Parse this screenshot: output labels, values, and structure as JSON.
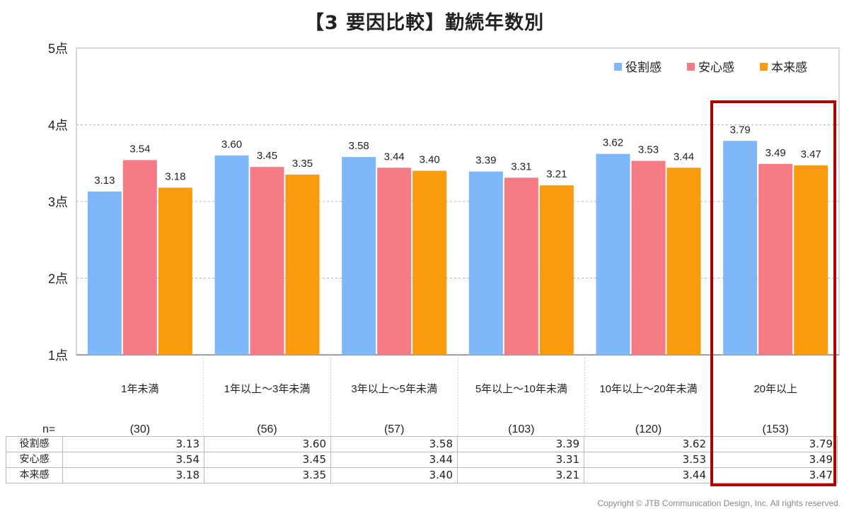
{
  "title": "【3 要因比較】勤続年数別",
  "copyright": "Copyright © JTB Communication Design, Inc. All rights reserved.",
  "n_label": "n=",
  "colors": {
    "役割感": "#7eb8f8",
    "安心感": "#f77b86",
    "本来感": "#f99b0c",
    "highlight": "#b00000"
  },
  "chart_data": {
    "type": "bar",
    "categories": [
      "1年未満",
      "1年以上～3年未満",
      "3年以上～5年未満",
      "5年以上～10年未満",
      "10年以上～20年未満",
      "20年以上"
    ],
    "sample_sizes": [
      "(30)",
      "(56)",
      "(57)",
      "(103)",
      "(120)",
      "(153)"
    ],
    "series": [
      {
        "name": "役割感",
        "values": [
          3.13,
          3.6,
          3.58,
          3.39,
          3.62,
          3.79
        ]
      },
      {
        "name": "安心感",
        "values": [
          3.54,
          3.45,
          3.44,
          3.31,
          3.53,
          3.49
        ]
      },
      {
        "name": "本来感",
        "values": [
          3.18,
          3.35,
          3.4,
          3.21,
          3.44,
          3.47
        ]
      }
    ],
    "ylim": [
      1,
      5
    ],
    "y_ticks": [
      1,
      2,
      3,
      4,
      5
    ],
    "y_tick_labels": [
      "1点",
      "2点",
      "3点",
      "4点",
      "5点"
    ],
    "grid": true,
    "legend_position": "top-right",
    "highlighted_category": "20年以上"
  }
}
